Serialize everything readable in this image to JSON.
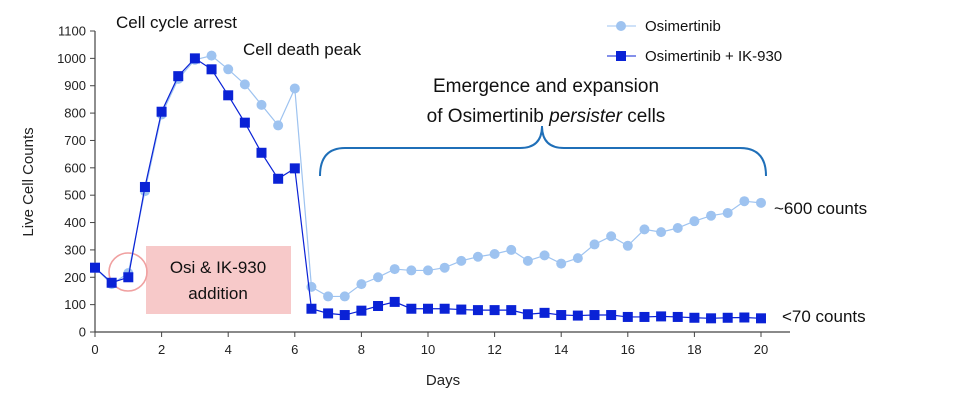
{
  "chart_data": {
    "type": "line",
    "xlabel": "Days",
    "ylabel": "Live  Cell  Counts",
    "xlim": [
      0,
      21
    ],
    "ylim": [
      0,
      1100
    ],
    "xticks": [
      0,
      2,
      4,
      6,
      8,
      10,
      12,
      14,
      16,
      18,
      20
    ],
    "yticks": [
      0,
      100,
      200,
      300,
      400,
      500,
      600,
      700,
      800,
      900,
      1000,
      1100
    ],
    "grid": false,
    "legend_position": "top-right",
    "series": [
      {
        "name": "Osimertinib",
        "color": "#9ec3f0",
        "marker": "circle",
        "x": [
          0,
          0.5,
          1,
          1.5,
          2,
          2.5,
          3,
          3.5,
          4,
          4.5,
          5,
          5.5,
          6,
          6.5,
          7,
          7.5,
          8,
          8.5,
          9,
          9.5,
          10,
          10.5,
          11,
          11.5,
          12,
          12.5,
          13,
          13.5,
          14,
          14.5,
          15,
          15.5,
          16,
          16.5,
          17,
          17.5,
          18,
          18.5,
          19,
          19.5,
          20
        ],
        "y": [
          235,
          175,
          215,
          515,
          795,
          925,
          995,
          1010,
          960,
          905,
          830,
          755,
          890,
          165,
          130,
          130,
          175,
          200,
          230,
          225,
          225,
          235,
          260,
          275,
          285,
          300,
          260,
          280,
          250,
          270,
          320,
          350,
          315,
          375,
          365,
          380,
          405,
          425,
          435,
          478,
          472
        ]
      },
      {
        "name": "Osimertinib + IK-930",
        "color": "#0a22d6",
        "marker": "square",
        "x": [
          0,
          0.5,
          1,
          1.5,
          2,
          2.5,
          3,
          3.5,
          4,
          4.5,
          5,
          5.5,
          6,
          6.5,
          7,
          7.5,
          8,
          8.5,
          9,
          9.5,
          10,
          10.5,
          11,
          11.5,
          12,
          12.5,
          13,
          13.5,
          14,
          14.5,
          15,
          15.5,
          16,
          16.5,
          17,
          17.5,
          18,
          18.5,
          19,
          19.5,
          20
        ],
        "y": [
          235,
          180,
          200,
          530,
          805,
          935,
          1000,
          960,
          865,
          765,
          655,
          560,
          598,
          85,
          68,
          62,
          78,
          95,
          110,
          85,
          85,
          85,
          82,
          80,
          80,
          80,
          65,
          70,
          62,
          60,
          62,
          62,
          55,
          55,
          57,
          55,
          52,
          50,
          52,
          53,
          50
        ]
      }
    ],
    "annotations": {
      "cell_cycle_arrest": "Cell cycle arrest",
      "cell_death_peak": "Cell death peak",
      "emergence_line1": "Emergence and expansion",
      "emergence_line2_pre": "of Osimertinib ",
      "emergence_line2_italic": "persister",
      "emergence_line2_post": " cells",
      "addition_line1": "Osi & IK-930",
      "addition_line2": "addition",
      "count_600": "~600 counts",
      "count_70": "<70 counts"
    },
    "colors": {
      "addition_box": "#f7c9c9",
      "highlight_circle": "#f0a0a0",
      "brace": "#1f6fb8",
      "axis": "#444444"
    }
  }
}
